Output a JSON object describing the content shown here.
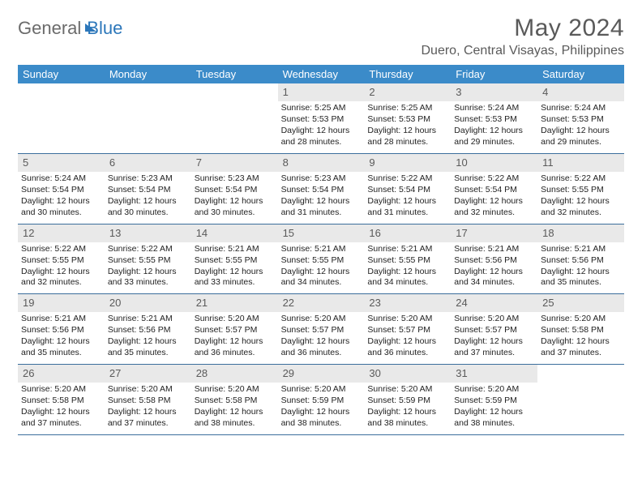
{
  "brand": {
    "word1": "General",
    "word2": "Blue"
  },
  "title": "May 2024",
  "location": "Duero, Central Visayas, Philippines",
  "colors": {
    "header_bg": "#3b8bc9",
    "rule": "#3b6e9c",
    "daynum_bg": "#e9e9e9",
    "text_gray": "#5a5a5a"
  },
  "dow": [
    "Sunday",
    "Monday",
    "Tuesday",
    "Wednesday",
    "Thursday",
    "Friday",
    "Saturday"
  ],
  "weeks": [
    [
      null,
      null,
      null,
      {
        "n": "1",
        "sr": "5:25 AM",
        "ss": "5:53 PM",
        "dl": "12 hours and 28 minutes."
      },
      {
        "n": "2",
        "sr": "5:25 AM",
        "ss": "5:53 PM",
        "dl": "12 hours and 28 minutes."
      },
      {
        "n": "3",
        "sr": "5:24 AM",
        "ss": "5:53 PM",
        "dl": "12 hours and 29 minutes."
      },
      {
        "n": "4",
        "sr": "5:24 AM",
        "ss": "5:53 PM",
        "dl": "12 hours and 29 minutes."
      }
    ],
    [
      {
        "n": "5",
        "sr": "5:24 AM",
        "ss": "5:54 PM",
        "dl": "12 hours and 30 minutes."
      },
      {
        "n": "6",
        "sr": "5:23 AM",
        "ss": "5:54 PM",
        "dl": "12 hours and 30 minutes."
      },
      {
        "n": "7",
        "sr": "5:23 AM",
        "ss": "5:54 PM",
        "dl": "12 hours and 30 minutes."
      },
      {
        "n": "8",
        "sr": "5:23 AM",
        "ss": "5:54 PM",
        "dl": "12 hours and 31 minutes."
      },
      {
        "n": "9",
        "sr": "5:22 AM",
        "ss": "5:54 PM",
        "dl": "12 hours and 31 minutes."
      },
      {
        "n": "10",
        "sr": "5:22 AM",
        "ss": "5:54 PM",
        "dl": "12 hours and 32 minutes."
      },
      {
        "n": "11",
        "sr": "5:22 AM",
        "ss": "5:55 PM",
        "dl": "12 hours and 32 minutes."
      }
    ],
    [
      {
        "n": "12",
        "sr": "5:22 AM",
        "ss": "5:55 PM",
        "dl": "12 hours and 32 minutes."
      },
      {
        "n": "13",
        "sr": "5:22 AM",
        "ss": "5:55 PM",
        "dl": "12 hours and 33 minutes."
      },
      {
        "n": "14",
        "sr": "5:21 AM",
        "ss": "5:55 PM",
        "dl": "12 hours and 33 minutes."
      },
      {
        "n": "15",
        "sr": "5:21 AM",
        "ss": "5:55 PM",
        "dl": "12 hours and 34 minutes."
      },
      {
        "n": "16",
        "sr": "5:21 AM",
        "ss": "5:55 PM",
        "dl": "12 hours and 34 minutes."
      },
      {
        "n": "17",
        "sr": "5:21 AM",
        "ss": "5:56 PM",
        "dl": "12 hours and 34 minutes."
      },
      {
        "n": "18",
        "sr": "5:21 AM",
        "ss": "5:56 PM",
        "dl": "12 hours and 35 minutes."
      }
    ],
    [
      {
        "n": "19",
        "sr": "5:21 AM",
        "ss": "5:56 PM",
        "dl": "12 hours and 35 minutes."
      },
      {
        "n": "20",
        "sr": "5:21 AM",
        "ss": "5:56 PM",
        "dl": "12 hours and 35 minutes."
      },
      {
        "n": "21",
        "sr": "5:20 AM",
        "ss": "5:57 PM",
        "dl": "12 hours and 36 minutes."
      },
      {
        "n": "22",
        "sr": "5:20 AM",
        "ss": "5:57 PM",
        "dl": "12 hours and 36 minutes."
      },
      {
        "n": "23",
        "sr": "5:20 AM",
        "ss": "5:57 PM",
        "dl": "12 hours and 36 minutes."
      },
      {
        "n": "24",
        "sr": "5:20 AM",
        "ss": "5:57 PM",
        "dl": "12 hours and 37 minutes."
      },
      {
        "n": "25",
        "sr": "5:20 AM",
        "ss": "5:58 PM",
        "dl": "12 hours and 37 minutes."
      }
    ],
    [
      {
        "n": "26",
        "sr": "5:20 AM",
        "ss": "5:58 PM",
        "dl": "12 hours and 37 minutes."
      },
      {
        "n": "27",
        "sr": "5:20 AM",
        "ss": "5:58 PM",
        "dl": "12 hours and 37 minutes."
      },
      {
        "n": "28",
        "sr": "5:20 AM",
        "ss": "5:58 PM",
        "dl": "12 hours and 38 minutes."
      },
      {
        "n": "29",
        "sr": "5:20 AM",
        "ss": "5:59 PM",
        "dl": "12 hours and 38 minutes."
      },
      {
        "n": "30",
        "sr": "5:20 AM",
        "ss": "5:59 PM",
        "dl": "12 hours and 38 minutes."
      },
      {
        "n": "31",
        "sr": "5:20 AM",
        "ss": "5:59 PM",
        "dl": "12 hours and 38 minutes."
      },
      null
    ]
  ],
  "labels": {
    "sunrise": "Sunrise:",
    "sunset": "Sunset:",
    "daylight": "Daylight:"
  }
}
